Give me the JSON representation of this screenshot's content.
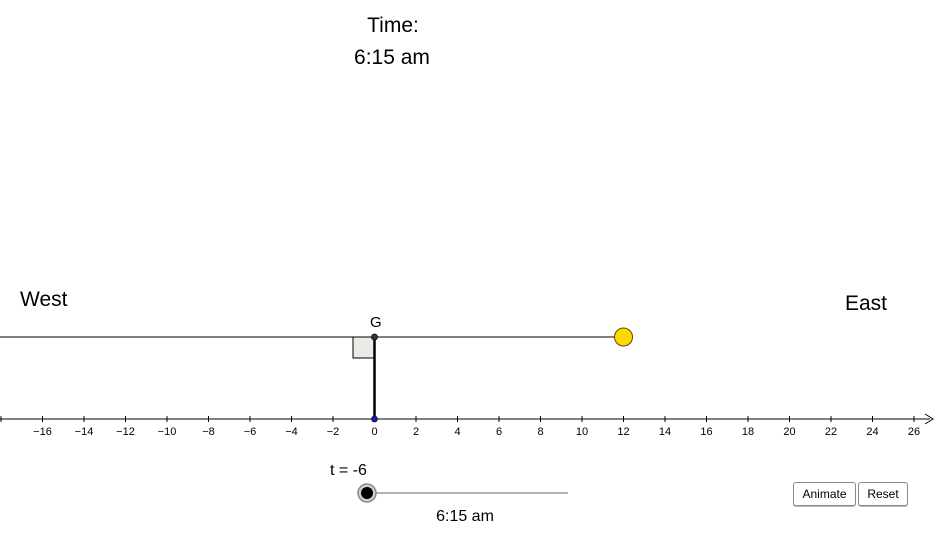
{
  "header": {
    "time_heading": "Time:",
    "time_value": "6:15 am"
  },
  "labels": {
    "west": "West",
    "east": "East",
    "point_g": "G"
  },
  "axis": {
    "ticks": [
      -16,
      -14,
      -12,
      -10,
      -8,
      -6,
      -4,
      -2,
      0,
      2,
      4,
      6,
      8,
      10,
      12,
      14,
      16,
      18,
      20,
      22,
      24,
      26
    ]
  },
  "sun": {
    "x_value": 12,
    "color": "#FFD700"
  },
  "slider": {
    "caption": "t = -6",
    "t_value": -6,
    "t_min": -6,
    "t_max": 6,
    "value_text": "6:15 am"
  },
  "buttons": {
    "animate_label": "Animate",
    "reset_label": "Reset"
  },
  "colors": {
    "point_blue": "#1a1ab8",
    "sun_stroke": "#5a4a00",
    "right_angle_fill": "#e9ebe7"
  }
}
